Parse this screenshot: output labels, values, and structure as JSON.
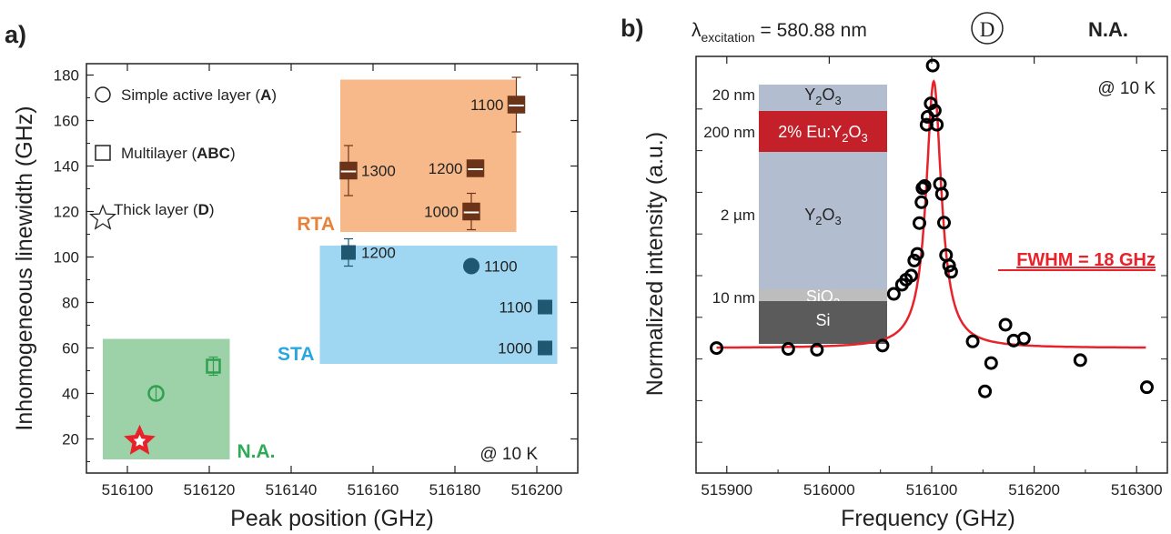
{
  "chart_data": [
    {
      "panel_label": "a)",
      "type": "scatter",
      "xlabel": "Peak position (GHz)",
      "ylabel": "Inhomogeneous linewidth (GHz)",
      "xlim": [
        516090,
        516210
      ],
      "ylim": [
        5,
        185
      ],
      "xticks": [
        516100,
        516120,
        516140,
        516160,
        516180,
        516200
      ],
      "yticks": [
        20,
        40,
        60,
        80,
        100,
        120,
        140,
        160,
        180
      ],
      "annotation": "@ 10 K",
      "legend": {
        "placement": "top-left",
        "items": [
          {
            "marker": "circle",
            "text": "Simple active layer (",
            "bold": "A",
            "tail": ")"
          },
          {
            "marker": "square",
            "text": "Multilayer (",
            "bold": "ABC",
            "tail": ")"
          },
          {
            "marker": "star",
            "text": "Thick layer (",
            "bold": "D",
            "tail": ")"
          }
        ]
      },
      "regions": [
        {
          "label": "RTA",
          "x": [
            516152,
            516195
          ],
          "y": [
            111,
            178
          ],
          "color": "#f8b98a",
          "label_color": "#e8823a"
        },
        {
          "label": "STA",
          "x": [
            516147,
            516205
          ],
          "y": [
            53,
            105
          ],
          "color": "#9fd7f2",
          "label_color": "#29a7df"
        },
        {
          "label": "N.A.",
          "x": [
            516094,
            516125
          ],
          "y": [
            11,
            64
          ],
          "color": "#9dd1a8",
          "label_color": "#2fab57"
        }
      ],
      "series": [
        {
          "group": "N.A.",
          "points": [
            {
              "x": 516107,
              "y": 40,
              "err": 3,
              "marker": "circle",
              "style": "open-green"
            },
            {
              "x": 516121,
              "y": 52,
              "err": 4,
              "marker": "square",
              "style": "open-green"
            },
            {
              "x": 516103,
              "y": 19,
              "err": 0,
              "marker": "star",
              "style": "red-star"
            }
          ]
        },
        {
          "group": "RTA",
          "points": [
            {
              "x": 516154,
              "y": 138,
              "err": 11,
              "marker": "square",
              "style": "half-brown",
              "label": "1300",
              "label_pos": "right"
            },
            {
              "x": 516185,
              "y": 139,
              "err": 3,
              "marker": "square",
              "style": "half-brown",
              "label": "1200",
              "label_pos": "left"
            },
            {
              "x": 516184,
              "y": 120,
              "err": 8,
              "marker": "square",
              "style": "half-brown",
              "label": "1000",
              "label_pos": "left"
            },
            {
              "x": 516195,
              "y": 167,
              "err": 12,
              "marker": "square",
              "style": "half-brown",
              "label": "1100",
              "label_pos": "left"
            }
          ]
        },
        {
          "group": "STA",
          "points": [
            {
              "x": 516154,
              "y": 102,
              "err": 6,
              "marker": "square",
              "style": "filled-teal",
              "label": "1200",
              "label_pos": "right"
            },
            {
              "x": 516184,
              "y": 96,
              "err": 0,
              "marker": "circle",
              "style": "filled-teal",
              "label": "1100",
              "label_pos": "right"
            },
            {
              "x": 516202,
              "y": 78,
              "err": 0,
              "marker": "square",
              "style": "filled-teal",
              "label": "1100",
              "label_pos": "left"
            },
            {
              "x": 516202,
              "y": 60,
              "err": 0,
              "marker": "square",
              "style": "filled-teal",
              "label": "1000",
              "label_pos": "left"
            }
          ]
        }
      ]
    },
    {
      "panel_label": "b)",
      "type": "scatter",
      "xlabel": "Frequency (GHz)",
      "ylabel": "Normalized intensity (a.u.)",
      "xlim": [
        515870,
        516330
      ],
      "xticks": [
        515900,
        516000,
        516100,
        516200,
        516300
      ],
      "ylim": [
        0,
        1
      ],
      "header": {
        "lambda_symbol": "λ",
        "lambda_sub": "excitation",
        "lambda_value": " = 580.88 nm",
        "sample_letter": "D",
        "condition": "N.A."
      },
      "annotation": "@ 10 K",
      "fit_label": "FWHM = 18 GHz",
      "fit": {
        "type": "lorentzian",
        "center": 516102,
        "fwhm": 18,
        "baseline": 0.3,
        "peak": 0.94
      },
      "points": [
        [
          515890,
          0.3
        ],
        [
          515960,
          0.298
        ],
        [
          515988,
          0.296
        ],
        [
          516052,
          0.306
        ],
        [
          516063,
          0.43
        ],
        [
          516071,
          0.452
        ],
        [
          516075,
          0.464
        ],
        [
          516080,
          0.474
        ],
        [
          516083,
          0.51
        ],
        [
          516086,
          0.526
        ],
        [
          516088,
          0.6
        ],
        [
          516090,
          0.65
        ],
        [
          516091,
          0.684
        ],
        [
          516093,
          0.689
        ],
        [
          516095,
          0.836
        ],
        [
          516096,
          0.855
        ],
        [
          516099,
          0.887
        ],
        [
          516101,
          0.978
        ],
        [
          516103,
          0.87
        ],
        [
          516105,
          0.836
        ],
        [
          516108,
          0.694
        ],
        [
          516110,
          0.67
        ],
        [
          516112,
          0.601
        ],
        [
          516114,
          0.523
        ],
        [
          516117,
          0.498
        ],
        [
          516119,
          0.483
        ],
        [
          516140,
          0.316
        ],
        [
          516152,
          0.196
        ],
        [
          516158,
          0.264
        ],
        [
          516172,
          0.356
        ],
        [
          516180,
          0.318
        ],
        [
          516190,
          0.323
        ],
        [
          516245,
          0.271
        ],
        [
          516310,
          0.206
        ]
      ],
      "inset": {
        "layers": [
          {
            "thickness": "20 nm",
            "material": "Y",
            "sub": "2",
            "rest": "O",
            "sub2": "3"
          },
          {
            "thickness": "200 nm",
            "material": "2% Eu:Y",
            "sub": "2",
            "rest": "O",
            "sub2": "3"
          },
          {
            "thickness": "2 µm",
            "material": "Y",
            "sub": "2",
            "rest": "O",
            "sub2": "3"
          },
          {
            "thickness": "10 nm",
            "material": "SiO",
            "sub": "2",
            "rest": "",
            "sub2": ""
          },
          {
            "thickness": "",
            "material": "Si",
            "sub": "",
            "rest": "",
            "sub2": ""
          }
        ]
      }
    }
  ],
  "colors": {
    "green": "#2fa04f",
    "red": "#e8222a",
    "teal": "#1f5670",
    "brown": "#6b3418",
    "fit": "#e8222a"
  }
}
